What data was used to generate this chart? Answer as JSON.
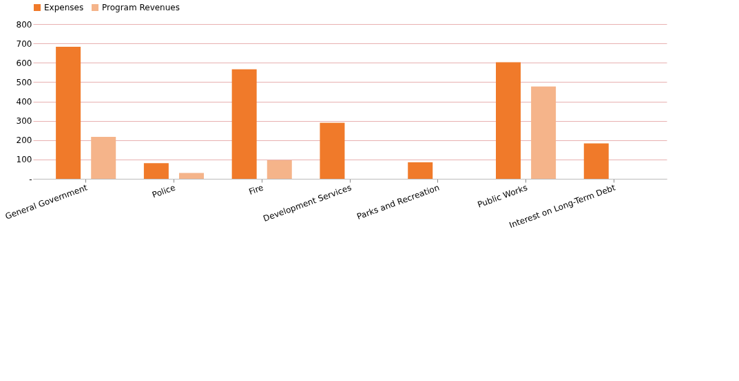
{
  "chart_data": {
    "type": "bar",
    "categories": [
      "General Government",
      "Police",
      "Fire",
      "Development Services",
      "Parks and Recreation",
      "Public Works",
      "Interest on Long-Term Debt"
    ],
    "series": [
      {
        "name": "Expenses",
        "color": "#f07a2a",
        "values": [
          683,
          81,
          566,
          290,
          85,
          603,
          183
        ]
      },
      {
        "name": "Program Revenues",
        "color": "#f5b48a",
        "values": [
          217,
          30,
          96,
          null,
          null,
          477,
          null
        ]
      }
    ],
    "ylim": [
      0,
      800
    ],
    "yticks": [
      {
        "value": 0,
        "label": "-"
      },
      100,
      200,
      300,
      400,
      500,
      600,
      700,
      800
    ],
    "grid": "y",
    "legend": "top"
  }
}
